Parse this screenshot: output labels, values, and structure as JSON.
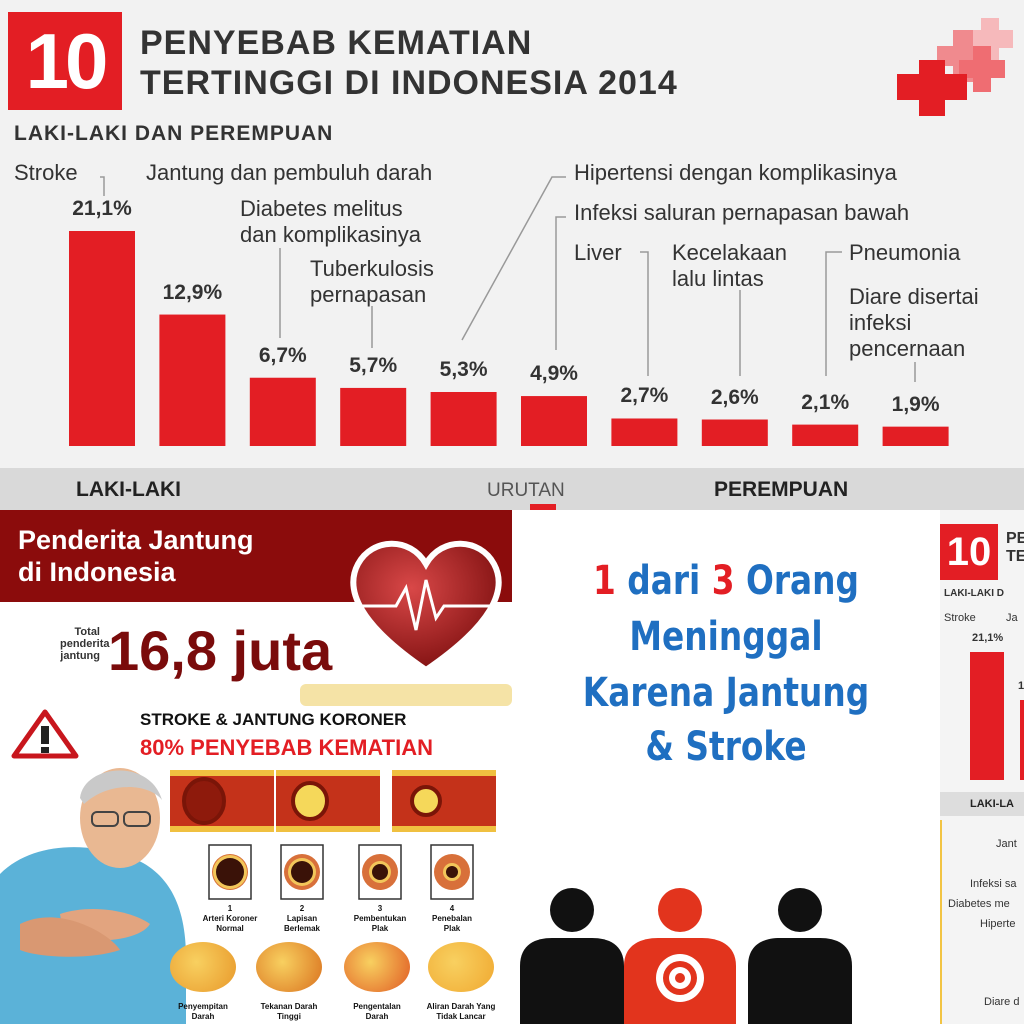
{
  "top": {
    "number": "10",
    "title_line1": "PENYEBAB KEMATIAN",
    "title_line2": "TERTINGGI DI INDONESIA 2014",
    "subtitle": "LAKI-LAKI DAN PEREMPUAN",
    "strip_left": "LAKI-LAKI",
    "strip_mid": "URUTAN",
    "strip_right": "PEREMPUAN"
  },
  "chart_data": {
    "type": "bar",
    "title": "10 PENYEBAB KEMATIAN TERTINGGI DI INDONESIA 2014",
    "subtitle": "LAKI-LAKI DAN PEREMPUAN",
    "categories": [
      "Stroke",
      "Jantung dan pembuluh darah",
      "Diabetes melitus dan komplikasinya",
      "Tuberkulosis pernapasan",
      "Hipertensi dengan komplikasinya",
      "Infeksi saluran pernapasan bawah",
      "Liver",
      "Kecelakaan lalu lintas",
      "Pneumonia",
      "Diare disertai infeksi pencernaan"
    ],
    "values": [
      21.1,
      12.9,
      6.7,
      5.7,
      5.3,
      4.9,
      2.7,
      2.6,
      2.1,
      1.9
    ],
    "value_labels": [
      "21,1%",
      "12,9%",
      "6,7%",
      "5,7%",
      "5,3%",
      "4,9%",
      "2,7%",
      "2,6%",
      "2,1%",
      "1,9%"
    ],
    "label_lines": [
      [
        "Stroke"
      ],
      [
        "Jantung dan pembuluh darah"
      ],
      [
        "Diabetes melitus",
        "dan komplikasinya"
      ],
      [
        "Tuberkulosis",
        "pernapasan"
      ],
      [
        "Hipertensi dengan komplikasinya"
      ],
      [
        "Infeksi saluran pernapasan bawah"
      ],
      [
        "Liver"
      ],
      [
        "Kecelakaan",
        "lalu lintas"
      ],
      [
        "Pneumonia"
      ],
      [
        "Diare disertai",
        "infeksi",
        "pencernaan"
      ]
    ],
    "xlabel": "",
    "ylabel": "",
    "ylim": [
      0,
      21.1
    ],
    "grid": false,
    "color": "#e31e24"
  },
  "heart_panel": {
    "title_line1": "Penderita Jantung",
    "title_line2": "di Indonesia",
    "total_label_line1": "Total",
    "total_label_line2": "penderita",
    "total_label_line3": "jantung",
    "total_value": "16,8 juta",
    "warning_line1": "STROKE & JANTUNG KORONER",
    "warning_line2": "80% PENYEBAB KEMATIAN",
    "stages": [
      {
        "num": "1",
        "label1": "Arteri Koroner",
        "label2": "Normal"
      },
      {
        "num": "2",
        "label1": "Lapisan",
        "label2": "Berlemak"
      },
      {
        "num": "3",
        "label1": "Pembentukan",
        "label2": "Plak"
      },
      {
        "num": "4",
        "label1": "Penebalan",
        "label2": "Plak"
      }
    ],
    "effects": [
      {
        "label1": "Penyempitan",
        "label2": "Darah"
      },
      {
        "label1": "Tekanan Darah",
        "label2": "Tinggi"
      },
      {
        "label1": "Pengentalan",
        "label2": "Darah"
      },
      {
        "label1": "Aliran Darah Yang",
        "label2": "Tidak Lancar"
      }
    ],
    "colors": {
      "header": "#8b0c0c",
      "value": "#7a0b0b",
      "alert": "#e31e24"
    }
  },
  "middle_panel": {
    "line1_num1": "1",
    "line1_mid": " dari ",
    "line1_num2": "3",
    "line1_end": " Orang",
    "line2": "Meninggal",
    "line3": "Karena Jantung",
    "line4": "& Stroke",
    "colors": {
      "text": "#1f6fc1",
      "highlight": "#e31e24"
    }
  },
  "right_panel": {
    "number": "10",
    "title_frag1": "PE",
    "title_frag2": "TE",
    "subtitle_frag": "LAKI-LAKI D",
    "label1": "Stroke",
    "label2": "Ja",
    "value1": "21,1%",
    "value2": "1,",
    "strip_frag": "LAKI-LA",
    "list": [
      "Jant",
      "Infeksi sa",
      "Diabetes me",
      "Hiperte",
      "Diare d"
    ]
  }
}
